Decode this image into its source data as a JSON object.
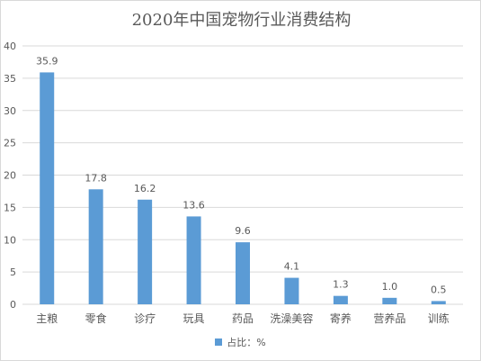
{
  "chart_data": {
    "type": "bar",
    "title": "2020年中国宠物行业消费结构",
    "categories": [
      "主粮",
      "零食",
      "诊疗",
      "玩具",
      "药品",
      "洗澡美容",
      "寄养",
      "营养品",
      "训练"
    ],
    "series": [
      {
        "name": "占比：%",
        "values": [
          35.9,
          17.8,
          16.2,
          13.6,
          9.6,
          4.1,
          1.3,
          1.0,
          0.5
        ]
      }
    ],
    "data_labels": [
      "35.9",
      "17.8",
      "16.2",
      "13.6",
      "9.6",
      "4.1",
      "1.3",
      "1.0",
      "0.5"
    ],
    "y_ticks": [
      "0",
      "5",
      "10",
      "15",
      "20",
      "25",
      "30",
      "35",
      "40"
    ],
    "ylim": [
      0,
      40
    ],
    "grid": true,
    "legend_position": "bottom",
    "bar_color": "#5b9bd5",
    "grid_color": "#d9d9d9",
    "text_color": "#595959"
  }
}
